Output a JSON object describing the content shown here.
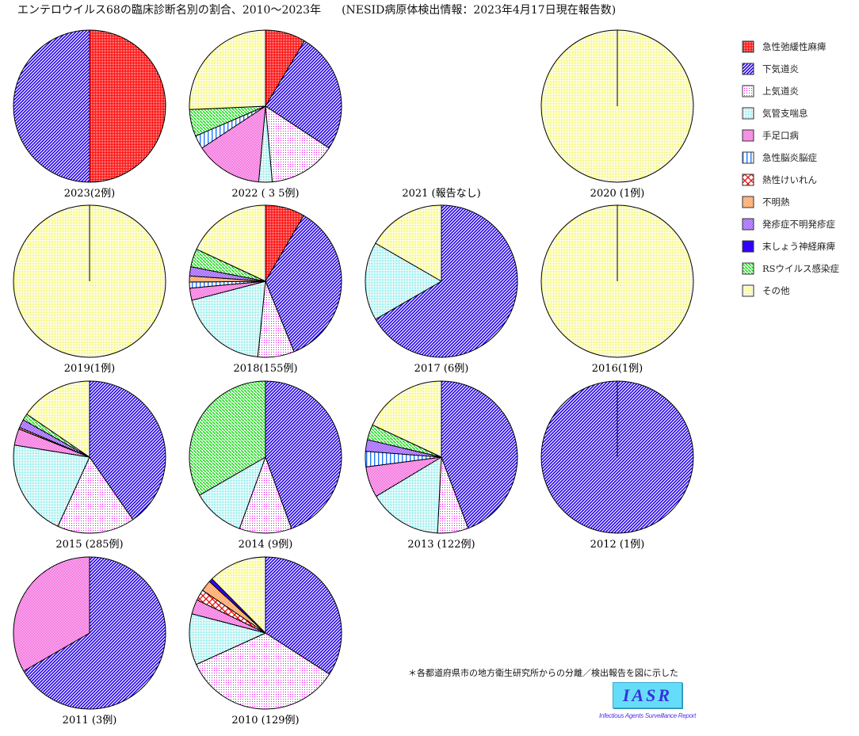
{
  "chart_data": {
    "type": "pie",
    "title": "エンテロウイルス68の臨床診断名別の割合、2010〜2023年",
    "source": "(NESID病原体検出情報：2023年4月17日現在報告数)",
    "legend_position": "right",
    "categories": [
      "急性弛緩性麻痺",
      "下気道炎",
      "上気道炎",
      "気管支喘息",
      "手足口病",
      "急性脳炎脳症",
      "熱性けいれん",
      "不明熱",
      "発疹症不明発疹症",
      "末しょう神経麻痺",
      "RSウイルス感染症",
      "その他"
    ],
    "category_colors": [
      "#ff0000",
      "#2200ee",
      "#ee00ee",
      "#33dddd",
      "#ee22cc",
      "#2277ff",
      "#ee0000",
      "#ff6a00",
      "#6600ff",
      "#3300ff",
      "#22dd22",
      "#eeee00"
    ],
    "pies": [
      {
        "label": "2023(2例)",
        "values": [
          1,
          1,
          0,
          0,
          0,
          0,
          0,
          0,
          0,
          0,
          0,
          0
        ]
      },
      {
        "label": "2022 ( 3 5例)",
        "values": [
          3,
          9,
          5,
          1,
          5,
          1,
          0,
          0,
          0,
          0,
          2,
          9
        ]
      },
      {
        "label": "2021 (報告なし)",
        "values": []
      },
      {
        "label": "2020 (1例)",
        "values": [
          0,
          0,
          0,
          0,
          0,
          0,
          0,
          0,
          0,
          0,
          0,
          1
        ]
      },
      {
        "label": "2019(1例)",
        "values": [
          0,
          0,
          0,
          0,
          0,
          0,
          0,
          0,
          0,
          0,
          0,
          1
        ]
      },
      {
        "label": "2018(155例)",
        "values": [
          13,
          55,
          12,
          30,
          4,
          2,
          0,
          2,
          3,
          0,
          6,
          28
        ]
      },
      {
        "label": "2017 (6例)",
        "values": [
          0,
          4,
          0,
          1,
          0,
          0,
          0,
          0,
          0,
          0,
          0,
          1
        ]
      },
      {
        "label": "2016(1例)",
        "values": [
          0,
          0,
          0,
          0,
          0,
          0,
          0,
          0,
          0,
          0,
          0,
          1
        ]
      },
      {
        "label": "2015  (285例)",
        "values": [
          0,
          115,
          47,
          59,
          10,
          0,
          0,
          1,
          5,
          0,
          4,
          44
        ]
      },
      {
        "label": "2014  (9例)",
        "values": [
          0,
          4,
          1,
          1,
          0,
          0,
          0,
          0,
          0,
          0,
          3,
          0
        ]
      },
      {
        "label": "2013 (122例)",
        "values": [
          0,
          54,
          8,
          19,
          8,
          4,
          0,
          0,
          3,
          0,
          4,
          22
        ]
      },
      {
        "label": "2012  (1例)",
        "values": [
          0,
          1,
          0,
          0,
          0,
          0,
          0,
          0,
          0,
          0,
          0,
          0
        ]
      },
      {
        "label": "2011  (3例)",
        "values": [
          0,
          2,
          0,
          0,
          1,
          0,
          0,
          0,
          0,
          0,
          0,
          0
        ]
      },
      {
        "label": "2010 (129例)",
        "values": [
          0,
          44,
          44,
          14,
          4,
          0,
          3,
          3,
          0,
          1,
          0,
          16
        ]
      }
    ]
  },
  "footnote": "＊各都道府県市の地方衛生研究所からの分離／検出報告を図に示した",
  "logo": {
    "text": "IASR",
    "subtitle": "Infectious Agents Surveillance Report"
  }
}
